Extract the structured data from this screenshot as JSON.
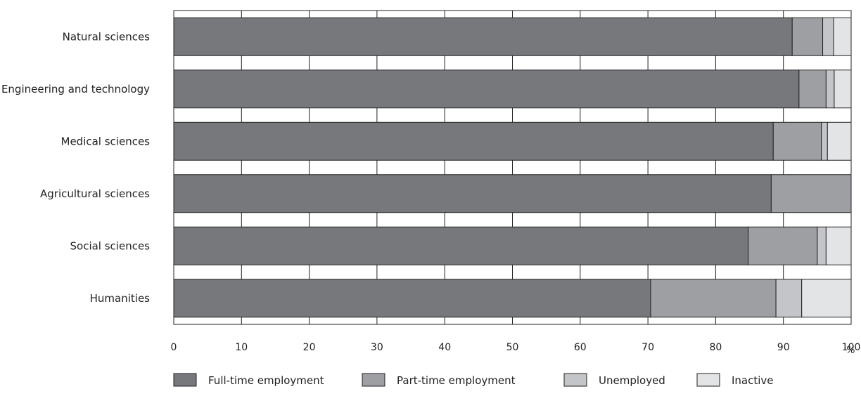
{
  "chart_data": {
    "type": "bar",
    "orientation": "horizontal",
    "stacked": true,
    "categories": [
      "Natural sciences",
      "Engineering and technology",
      "Medical sciences",
      "Agricultural sciences",
      "Social sciences",
      "Humanities"
    ],
    "series": [
      {
        "name": "Full-time employment",
        "color": "#77787c",
        "values": [
          91.3,
          92.3,
          88.5,
          88.2,
          84.8,
          70.4
        ]
      },
      {
        "name": "Part-time employment",
        "color": "#9e9fa3",
        "values": [
          4.5,
          4.0,
          7.1,
          11.8,
          10.2,
          18.5
        ]
      },
      {
        "name": "Unemployed",
        "color": "#c4c5c8",
        "values": [
          1.6,
          1.2,
          0.9,
          0.0,
          1.3,
          3.8
        ]
      },
      {
        "name": "Inactive",
        "color": "#e3e4e6",
        "values": [
          2.6,
          2.5,
          3.5,
          0.0,
          3.7,
          7.3
        ]
      }
    ],
    "xlim": [
      0,
      100
    ],
    "xticks": [
      0,
      10,
      20,
      30,
      40,
      50,
      60,
      70,
      80,
      90,
      100
    ],
    "xunit": "%",
    "grid": true,
    "legend_position": "bottom"
  }
}
